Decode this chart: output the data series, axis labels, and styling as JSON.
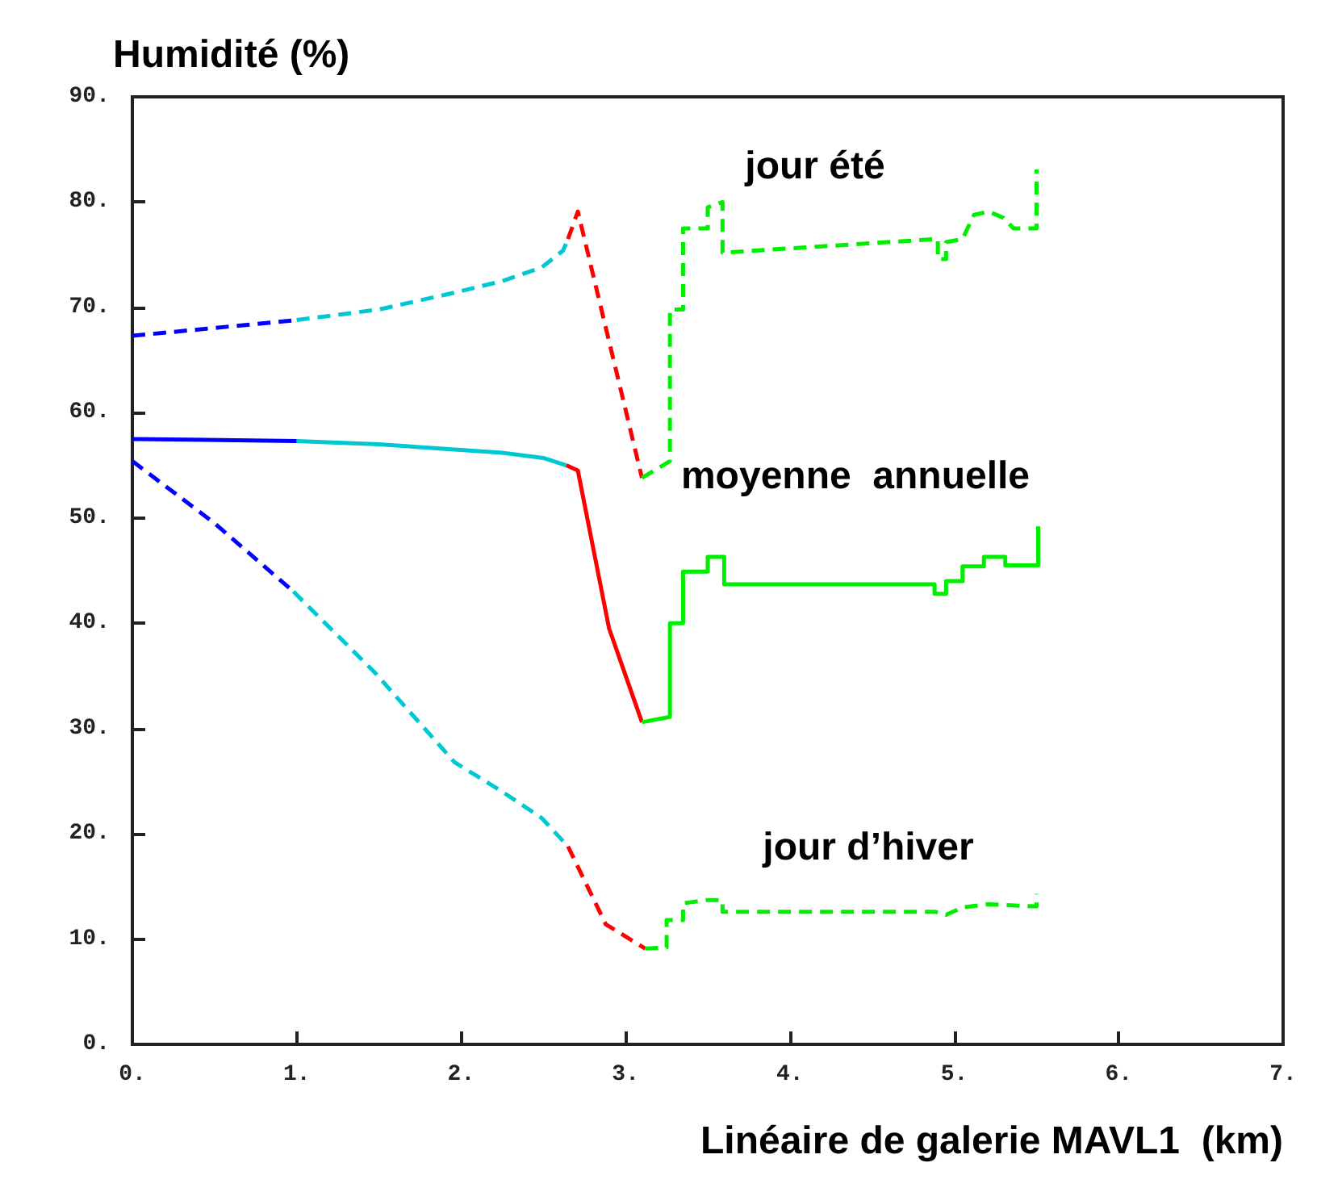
{
  "chart_data": {
    "type": "line",
    "xlabel": "Linéaire de galerie MAVL1  (km)",
    "ylabel": "Humidité (%)",
    "xlim": [
      0,
      7
    ],
    "ylim": [
      0,
      90
    ],
    "xticks": [
      {
        "value": 0,
        "label": "0."
      },
      {
        "value": 1,
        "label": "1."
      },
      {
        "value": 2,
        "label": "2."
      },
      {
        "value": 3,
        "label": "3."
      },
      {
        "value": 4,
        "label": "4."
      },
      {
        "value": 5,
        "label": "5."
      },
      {
        "value": 6,
        "label": "6."
      },
      {
        "value": 7,
        "label": "7."
      }
    ],
    "yticks": [
      {
        "value": 0,
        "label": "0."
      },
      {
        "value": 10,
        "label": "10."
      },
      {
        "value": 20,
        "label": "20."
      },
      {
        "value": 30,
        "label": "30."
      },
      {
        "value": 40,
        "label": "40."
      },
      {
        "value": 50,
        "label": "50."
      },
      {
        "value": 60,
        "label": "60."
      },
      {
        "value": 70,
        "label": "70."
      },
      {
        "value": 80,
        "label": "80."
      },
      {
        "value": 90,
        "label": "90."
      }
    ],
    "grid": false,
    "annotations": [
      "jour été",
      "moyenne  annuelle",
      "jour d’hiver"
    ],
    "series": [
      {
        "color": "#0000ff",
        "line_style": "dashed",
        "x": [
          0,
          1
        ],
        "values": [
          67.3,
          68.8
        ]
      },
      {
        "color": "#00c8d2",
        "line_style": "dashed",
        "x": [
          1,
          1.5,
          1.96,
          2.25,
          2.49,
          2.62,
          2.65
        ],
        "values": [
          68.8,
          69.8,
          71.4,
          72.5,
          73.8,
          75.4,
          76.5
        ]
      },
      {
        "color": "#ff0000",
        "line_style": "dashed",
        "x": [
          2.65,
          2.71,
          3.1
        ],
        "values": [
          76.5,
          79.1,
          53.8
        ]
      },
      {
        "color": "#00ee00",
        "line_style": "dashed",
        "x": [
          3.1,
          3.27,
          3.27,
          3.35,
          3.35,
          3.5,
          3.5,
          3.59,
          3.59,
          4.9,
          4.9,
          4.95,
          4.95,
          5.05,
          5.12,
          5.21,
          5.3,
          5.36,
          5.5,
          5.5
        ],
        "values": [
          53.8,
          55.4,
          69.8,
          69.8,
          77.5,
          77.5,
          79.5,
          80,
          75.2,
          76.5,
          74.6,
          74.6,
          76.2,
          76.5,
          78.8,
          79.1,
          78.5,
          77.5,
          77.5,
          83.1
        ]
      },
      {
        "color": "#0000ff",
        "line_style": "solid",
        "x": [
          0,
          1
        ],
        "values": [
          57.5,
          57.3
        ]
      },
      {
        "color": "#00c8d2",
        "line_style": "solid",
        "x": [
          1,
          1.5,
          1.96,
          2.25,
          2.5,
          2.64
        ],
        "values": [
          57.3,
          57.0,
          56.5,
          56.2,
          55.7,
          55.0
        ]
      },
      {
        "color": "#ff0000",
        "line_style": "solid",
        "x": [
          2.64,
          2.71,
          2.9,
          3.1
        ],
        "values": [
          55.0,
          54.5,
          39.5,
          30.6
        ]
      },
      {
        "color": "#00ee00",
        "line_style": "solid",
        "x": [
          3.1,
          3.27,
          3.27,
          3.35,
          3.35,
          3.5,
          3.5,
          3.6,
          3.6,
          4.88,
          4.88,
          4.95,
          4.95,
          5.05,
          5.05,
          5.18,
          5.18,
          5.31,
          5.31,
          5.51,
          5.51
        ],
        "values": [
          30.6,
          31.1,
          40.0,
          40.0,
          44.9,
          44.9,
          46.3,
          46.3,
          43.7,
          43.7,
          42.8,
          42.8,
          44.0,
          44.0,
          45.4,
          45.4,
          46.3,
          46.3,
          45.5,
          45.5,
          49.2
        ]
      },
      {
        "color": "#0000ff",
        "line_style": "dashed",
        "x": [
          0,
          0.5,
          0.98
        ],
        "values": [
          55.4,
          49.5,
          43.0
        ]
      },
      {
        "color": "#00c8d2",
        "line_style": "dashed",
        "x": [
          0.98,
          1.47,
          1.96,
          2.25,
          2.49,
          2.65
        ],
        "values": [
          43.0,
          35.4,
          26.8,
          24.0,
          21.5,
          18.8
        ]
      },
      {
        "color": "#ff0000",
        "line_style": "dashed",
        "x": [
          2.65,
          2.88,
          3.12
        ],
        "values": [
          18.8,
          11.4,
          9.1
        ]
      },
      {
        "color": "#00ee00",
        "line_style": "dashed",
        "x": [
          3.12,
          3.25,
          3.25,
          3.35,
          3.35,
          3.49,
          3.59,
          3.59,
          4.88,
          4.95,
          5.05,
          5.2,
          5.5,
          5.5
        ],
        "values": [
          9.1,
          9.2,
          11.8,
          11.8,
          13.4,
          13.7,
          13.7,
          12.6,
          12.6,
          12.3,
          13.0,
          13.3,
          13.1,
          14.3
        ]
      }
    ]
  }
}
